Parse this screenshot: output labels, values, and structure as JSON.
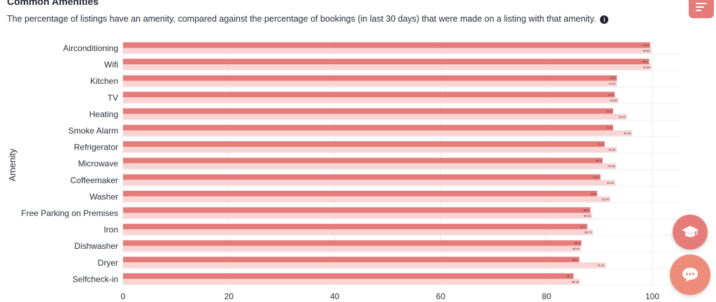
{
  "header": {
    "title": "Common Amenities",
    "subtitle": "The percentage of listings have an amenity, compared against the percentage of bookings (in last 30 days) that were made on a listing with that amenity.",
    "info_icon": "info-icon",
    "menu_icon": "menu-lines-icon"
  },
  "widgets": {
    "learn_icon": "graduation-cap-icon",
    "chat_icon": "chat-bubble-icon"
  },
  "colors": {
    "listings": "#e57c7a",
    "bookings": "#f9d4d3",
    "accent": "#e57c7a"
  },
  "chart_data": {
    "type": "bar",
    "orientation": "horizontal",
    "title": "Common Amenities",
    "ylabel": "Amenity",
    "xlabel": "",
    "xlim": [
      0,
      106
    ],
    "xticks": [
      0,
      20,
      40,
      60,
      80,
      100
    ],
    "grid": true,
    "categories": [
      "Airconditioning",
      "Wifi",
      "Kitchen",
      "TV",
      "Heating",
      "Smoke Alarm",
      "Refrigerator",
      "Microwave",
      "Coffeemaker",
      "Washer",
      "Free Parking on Premises",
      "Iron",
      "Dishwasher",
      "Dryer",
      "Selfcheck-in"
    ],
    "series": [
      {
        "values": [
          99.6,
          99.4,
          93.3,
          92.9,
          92.6,
          92.6,
          91.0,
          90.6,
          90.2,
          89.6,
          88.3,
          87.7,
          86.6,
          86.2,
          85.1
        ],
        "labels": [
          "99.6",
          "99.4",
          "93.3",
          "92.9",
          "92.6",
          "92.6",
          "91.0",
          "90.6",
          "90.2",
          "89.6",
          "88.3",
          "87.7",
          "86.6",
          "86.2",
          "85.1"
        ]
      },
      {
        "values": [
          99.82,
          99.84,
          93.33,
          93.59,
          95.18,
          96.19,
          93.3,
          93.18,
          93.0,
          92.04,
          88.63,
          88.79,
          86.48,
          91.22,
          86.36
        ],
        "labels": [
          "99.82",
          "99.84",
          "93.33",
          "93.59",
          "95.18",
          "96.19",
          "93.30",
          "93.18",
          "93.00",
          "92.04",
          "88.63",
          "88.79",
          "86.48",
          "91.22",
          "86.36"
        ]
      }
    ]
  }
}
